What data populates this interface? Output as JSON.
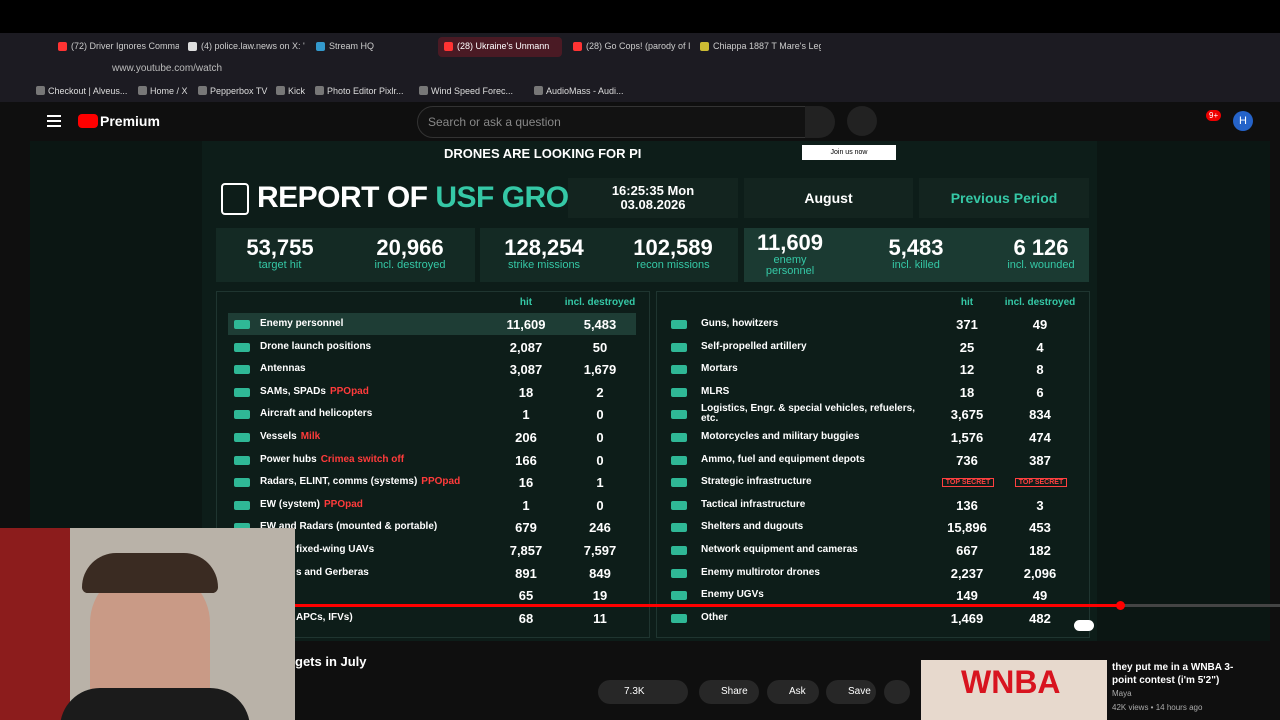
{
  "browser": {
    "tabs": [
      "(72) Driver Ignores Comma",
      "(4) police.law.news on X: '",
      "Stream HQ",
      "(28) Ukraine's Unmann",
      "(28) Go Cops! (parody of I",
      "Chiappa 1887 T Mare's Leg"
    ],
    "url": "www.youtube.com/watch",
    "bookmarks": [
      "Checkout | Alveus...",
      "Home / X",
      "Pepperbox TV",
      "Kick",
      "Photo Editor Pixlr...",
      "Wind Speed Forec...",
      "AudioMass - Audi..."
    ]
  },
  "youtube": {
    "logo": "Premium",
    "search_placeholder": "Search or ask a question",
    "notifications": "9+",
    "avatar": "H"
  },
  "report": {
    "banner": "DRONES ARE LOOKING FOR PI",
    "banner_button": "Join us now",
    "title": "REPORT OF",
    "title_accent": "USF GROUPING",
    "time": "16:25:35 Mon",
    "date": "03.08.2026",
    "month": "August",
    "period": "Previous Period",
    "stats": [
      {
        "value": "53,755",
        "label": "target hit"
      },
      {
        "value": "20,966",
        "label": "incl. destroyed"
      },
      {
        "value": "128,254",
        "label": "strike missions"
      },
      {
        "value": "102,589",
        "label": "recon missions"
      },
      {
        "value": "11,609",
        "label": "enemy personnel"
      },
      {
        "value": "5,483",
        "label": "incl. killed"
      },
      {
        "value": "6 126",
        "label": "incl. wounded"
      }
    ],
    "headers": [
      "hit",
      "incl. destroyed"
    ],
    "left_rows": [
      {
        "name": "Enemy personnel",
        "hit": "11,609",
        "destroyed": "5,483"
      },
      {
        "name": "Drone launch positions",
        "hit": "2,087",
        "destroyed": "50"
      },
      {
        "name": "Antennas",
        "hit": "3,087",
        "destroyed": "1,679"
      },
      {
        "name": "SAMs, SPADs",
        "tag": "PPOpad",
        "hit": "18",
        "destroyed": "2"
      },
      {
        "name": "Aircraft and helicopters",
        "hit": "1",
        "destroyed": "0"
      },
      {
        "name": "Vessels",
        "tag": "Milk",
        "hit": "206",
        "destroyed": "0"
      },
      {
        "name": "Power hubs",
        "tag": "Crimea switch off",
        "hit": "166",
        "destroyed": "0"
      },
      {
        "name": "Radars, ELINT, comms (systems)",
        "tag": "PPOpad",
        "hit": "16",
        "destroyed": "1"
      },
      {
        "name": "EW (system)",
        "tag": "PPOpad",
        "hit": "1",
        "destroyed": "0"
      },
      {
        "name": "EW and Radars (mounted & portable)",
        "hit": "679",
        "destroyed": "246"
      },
      {
        "name": "fixed-wing UAVs",
        "hit": "7,857",
        "destroyed": "7,597"
      },
      {
        "name": "s and Gerberas",
        "hit": "891",
        "destroyed": "849"
      },
      {
        "hit": "65",
        "destroyed": "19"
      },
      {
        "name": "APCs, IFVs)",
        "hit": "68",
        "destroyed": "11"
      }
    ],
    "right_rows": [
      {
        "name": "Guns, howitzers",
        "hit": "371",
        "destroyed": "49"
      },
      {
        "name": "Self-propelled artillery",
        "hit": "25",
        "destroyed": "4"
      },
      {
        "name": "Mortars",
        "hit": "12",
        "destroyed": "8"
      },
      {
        "name": "MLRS",
        "hit": "18",
        "destroyed": "6"
      },
      {
        "name": "Logistics, Engr. & special vehicles, refuelers, etc.",
        "hit": "3,675",
        "destroyed": "834"
      },
      {
        "name": "Motorcycles and military buggies",
        "hit": "1,576",
        "destroyed": "474"
      },
      {
        "name": "Ammo, fuel and equipment depots",
        "hit": "736",
        "destroyed": "387"
      },
      {
        "name": "Strategic infrastructure",
        "hit": "TOP SECRET",
        "destroyed": "TOP SECRET"
      },
      {
        "name": "Tactical infrastructure",
        "hit": "136",
        "destroyed": "3"
      },
      {
        "name": "Shelters and dugouts",
        "hit": "15,896",
        "destroyed": "453"
      },
      {
        "name": "Network equipment and cameras",
        "hit": "667",
        "destroyed": "182"
      },
      {
        "name": "Enemy multirotor drones",
        "hit": "2,237",
        "destroyed": "2,096"
      },
      {
        "name": "Enemy UGVs",
        "hit": "149",
        "destroyed": "49"
      },
      {
        "name": "Other",
        "hit": "1,469",
        "destroyed": "482"
      }
    ]
  },
  "video": {
    "title": "gets in July",
    "likes": "7.3K",
    "actions": [
      "Share",
      "Ask",
      "Save"
    ]
  },
  "suggestion": {
    "thumbnail_text": "WNBA",
    "title": "they put me in a WNBA 3-point contest (i'm 5'2\")",
    "channel": "Maya",
    "meta": "42K views • 14 hours ago"
  }
}
